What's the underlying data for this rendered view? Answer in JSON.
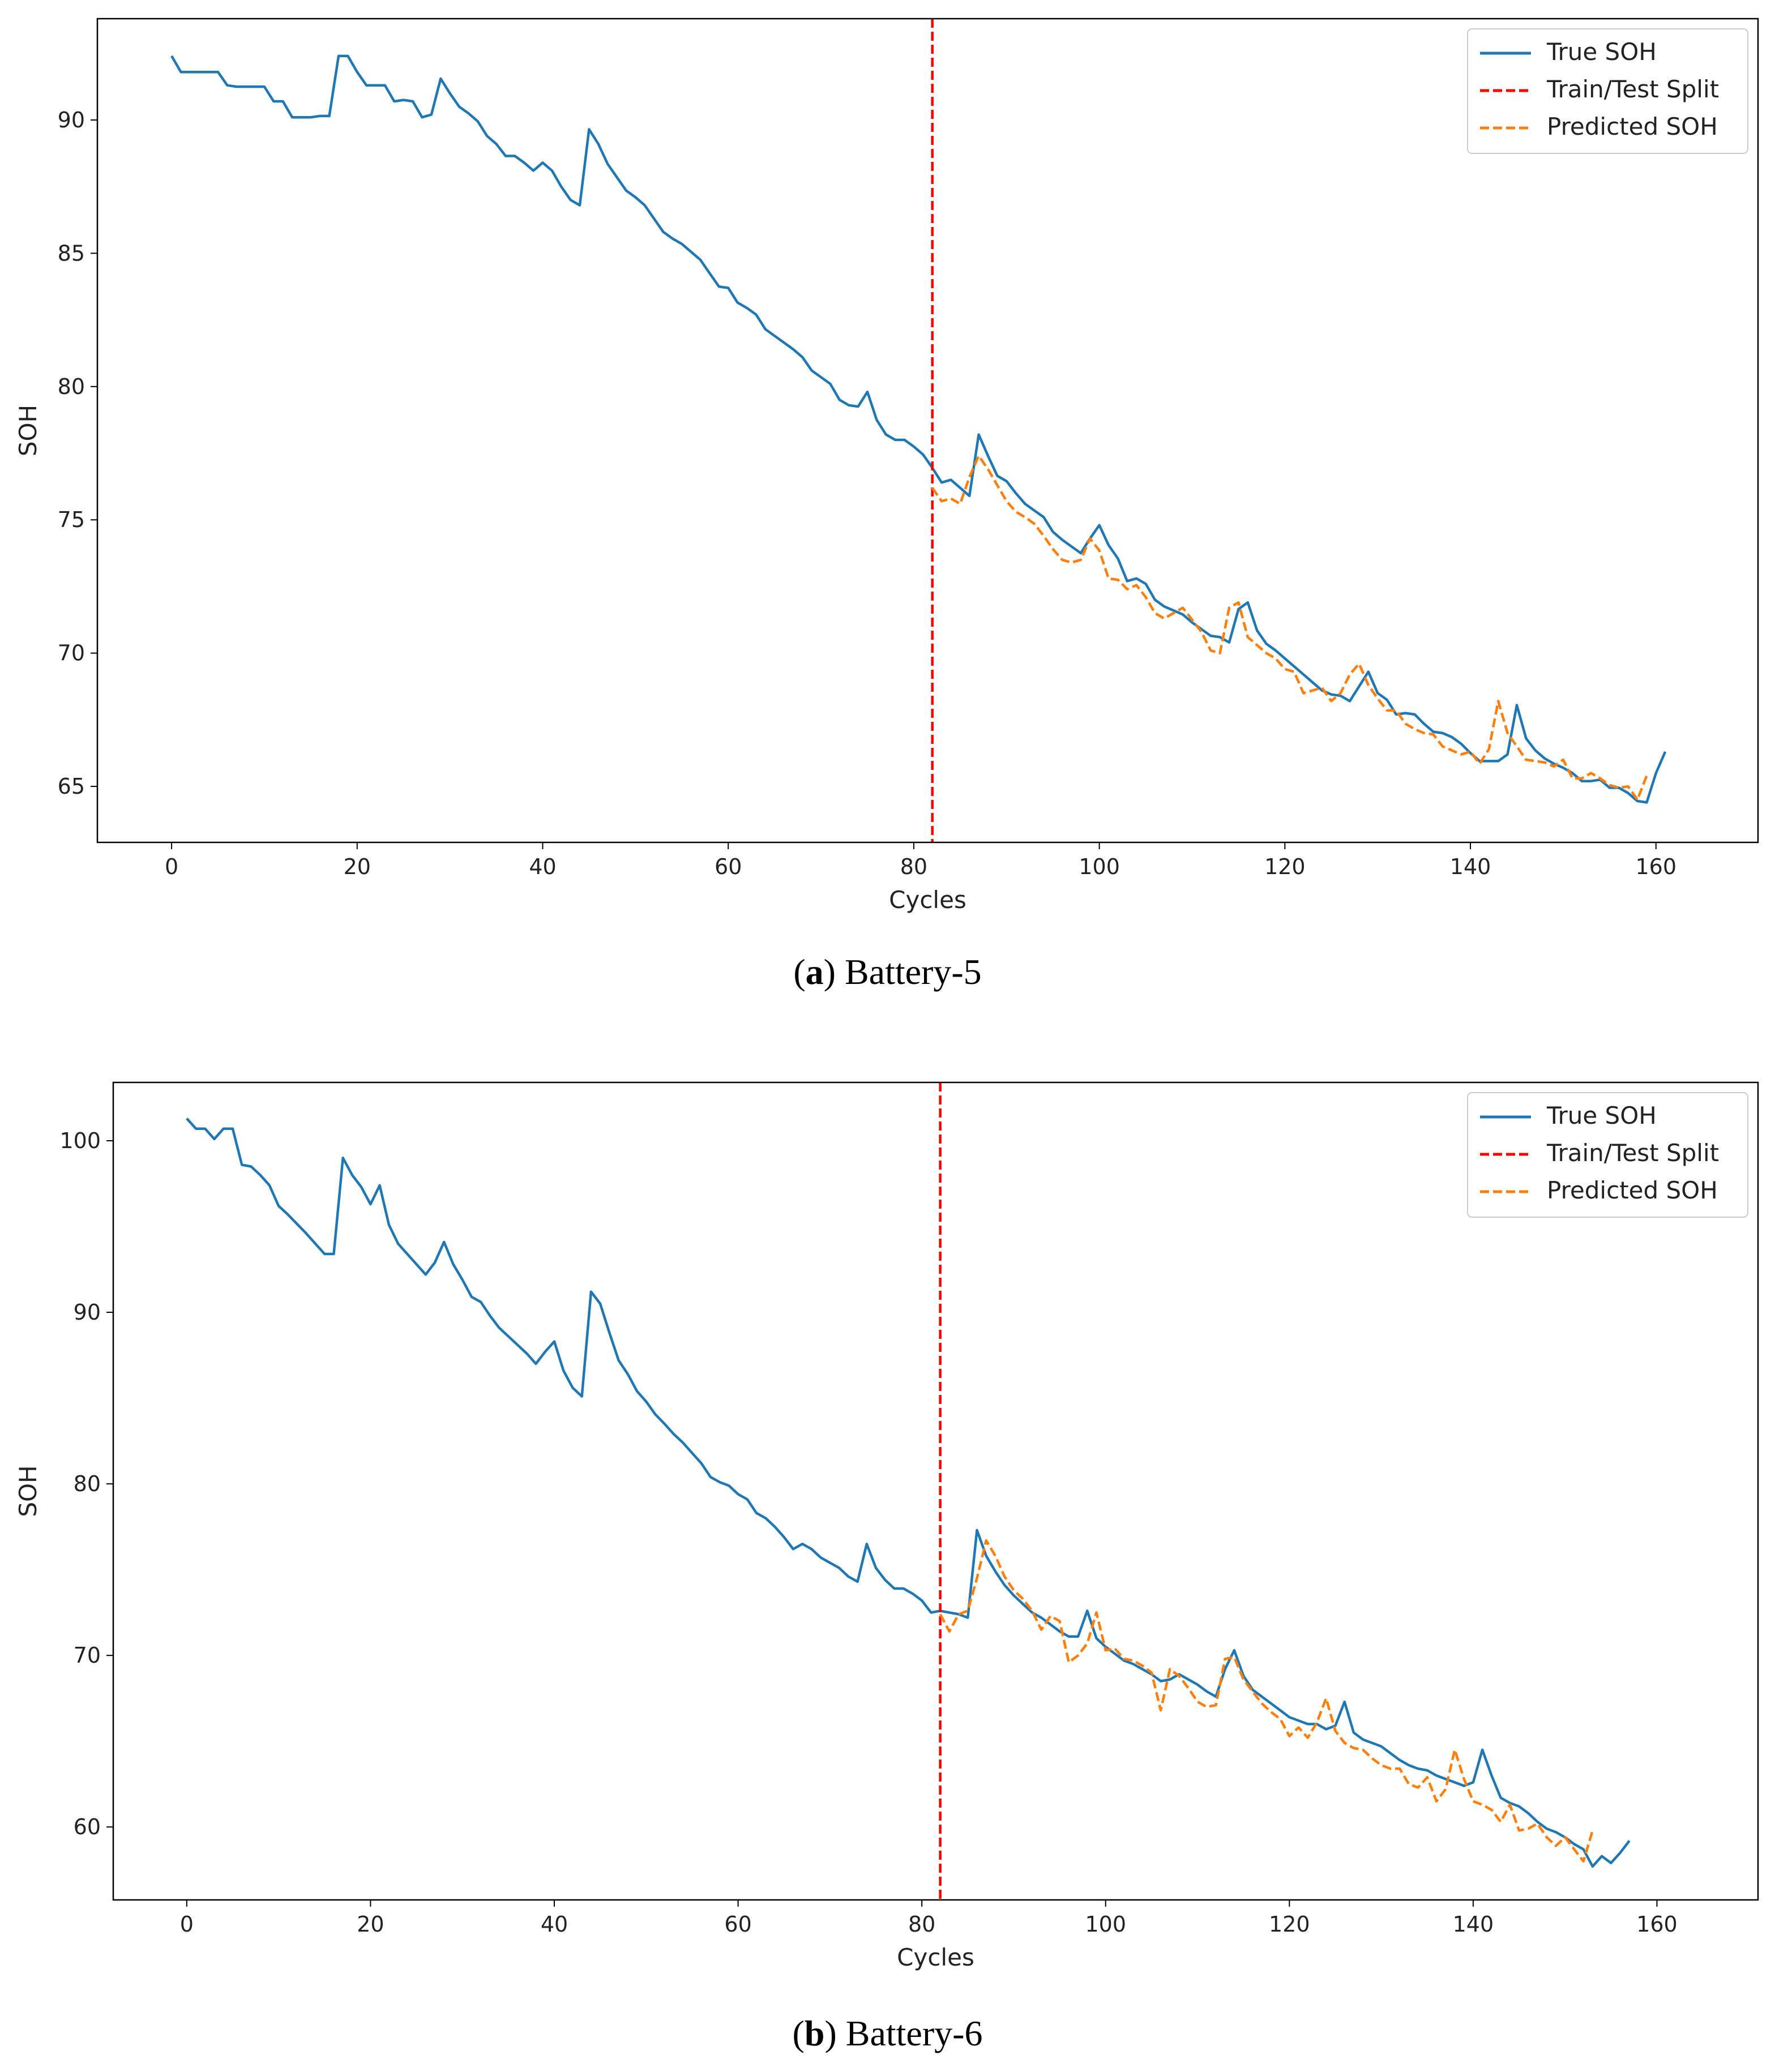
{
  "colors": {
    "true_soh": "#1f77b4",
    "split": "#ff0000",
    "predicted": "#ff7f0e"
  },
  "chart_data": [
    {
      "type": "line",
      "caption": {
        "letter": "a",
        "text": " Battery-5"
      },
      "xlabel": "Cycles",
      "ylabel": "SOH",
      "xlim": [
        -8,
        171
      ],
      "ylim": [
        62.9,
        93.8
      ],
      "xticks": [
        0,
        20,
        40,
        60,
        80,
        100,
        120,
        140,
        160
      ],
      "yticks": [
        65,
        70,
        75,
        80,
        85,
        90
      ],
      "split_x": 82,
      "legend": [
        "True SOH",
        "Train/Test Split",
        "Predicted SOH"
      ],
      "legend_position": "top-right",
      "series": [
        {
          "name": "True SOH",
          "x_start": 0,
          "values": [
            92.4,
            91.8,
            91.8,
            91.8,
            91.8,
            91.8,
            91.3,
            91.25,
            91.25,
            91.25,
            91.25,
            90.7,
            90.7,
            90.1,
            90.1,
            90.1,
            90.15,
            90.15,
            92.4,
            92.4,
            91.8,
            91.3,
            91.3,
            91.3,
            90.7,
            90.75,
            90.7,
            90.1,
            90.2,
            91.55,
            91.0,
            90.5,
            90.25,
            89.95,
            89.4,
            89.1,
            88.65,
            88.65,
            88.4,
            88.1,
            88.4,
            88.1,
            87.5,
            87.0,
            86.8,
            89.65,
            89.1,
            88.35,
            87.85,
            87.35,
            87.1,
            86.8,
            86.3,
            85.8,
            85.55,
            85.35,
            85.05,
            84.75,
            84.25,
            83.75,
            83.7,
            83.15,
            82.95,
            82.7,
            82.15,
            81.9,
            81.65,
            81.4,
            81.1,
            80.6,
            80.35,
            80.1,
            79.5,
            79.3,
            79.25,
            79.8,
            78.75,
            78.2,
            78.0,
            78.0,
            77.75,
            77.45,
            76.95,
            76.4,
            76.5,
            76.2,
            75.9,
            78.2,
            77.4,
            76.65,
            76.45,
            76.0,
            75.6,
            75.35,
            75.1,
            74.55,
            74.25,
            74.0,
            73.75,
            74.3,
            74.8,
            74.05,
            73.55,
            72.7,
            72.8,
            72.6,
            72.0,
            71.75,
            71.6,
            71.45,
            71.15,
            70.9,
            70.65,
            70.6,
            70.4,
            71.65,
            71.9,
            70.85,
            70.35,
            70.1,
            69.8,
            69.5,
            69.2,
            68.9,
            68.6,
            68.45,
            68.4,
            68.2,
            68.75,
            69.3,
            68.5,
            68.25,
            67.7,
            67.75,
            67.7,
            67.35,
            67.05,
            67.0,
            66.85,
            66.6,
            66.25,
            65.95,
            65.95,
            65.95,
            66.2,
            68.05,
            66.8,
            66.35,
            66.05,
            65.85,
            65.7,
            65.5,
            65.2,
            65.2,
            65.25,
            64.95,
            64.95,
            64.75,
            64.45,
            64.4,
            65.5,
            66.3
          ]
        },
        {
          "name": "Predicted SOH",
          "x_start": 82,
          "values": [
            76.2,
            75.7,
            75.8,
            75.6,
            76.6,
            77.4,
            76.9,
            76.3,
            75.7,
            75.3,
            75.1,
            74.85,
            74.4,
            73.9,
            73.5,
            73.4,
            73.5,
            74.3,
            73.85,
            72.8,
            72.75,
            72.4,
            72.55,
            72.1,
            71.5,
            71.3,
            71.5,
            71.7,
            71.25,
            70.8,
            70.1,
            70.0,
            71.7,
            71.9,
            70.6,
            70.3,
            70.0,
            69.8,
            69.4,
            69.3,
            68.5,
            68.6,
            68.7,
            68.2,
            68.5,
            69.2,
            69.6,
            68.8,
            68.3,
            67.85,
            67.85,
            67.35,
            67.15,
            67.0,
            66.95,
            66.5,
            66.35,
            66.2,
            66.3,
            65.85,
            66.4,
            68.2,
            67.0,
            66.5,
            66.0,
            65.95,
            65.9,
            65.75,
            66.0,
            65.3,
            65.3,
            65.5,
            65.3,
            65.05,
            64.95,
            65.0,
            64.5,
            65.4
          ]
        }
      ]
    },
    {
      "type": "line",
      "caption": {
        "letter": "b",
        "text": " Battery-6"
      },
      "xlabel": "Cycles",
      "ylabel": "SOH",
      "xlim": [
        -8,
        171
      ],
      "ylim": [
        55.75,
        103.4
      ],
      "xticks": [
        0,
        20,
        40,
        60,
        80,
        100,
        120,
        140,
        160
      ],
      "yticks": [
        60,
        70,
        80,
        90,
        100
      ],
      "split_x": 82,
      "legend": [
        "True SOH",
        "Train/Test Split",
        "Predicted SOH"
      ],
      "legend_position": "top-right",
      "series": [
        {
          "name": "True SOH",
          "x_start": 0,
          "values": [
            101.3,
            100.7,
            100.7,
            100.1,
            100.7,
            100.7,
            98.6,
            98.5,
            98.0,
            97.4,
            96.2,
            95.7,
            95.15,
            94.6,
            94.0,
            93.4,
            93.4,
            99.0,
            98.0,
            97.3,
            96.3,
            97.4,
            95.1,
            94.0,
            93.4,
            92.8,
            92.2,
            92.9,
            94.1,
            92.8,
            91.9,
            90.9,
            90.6,
            89.8,
            89.1,
            88.6,
            88.1,
            87.6,
            87.0,
            87.7,
            88.3,
            86.6,
            85.6,
            85.1,
            91.2,
            90.5,
            88.8,
            87.2,
            86.4,
            85.4,
            84.8,
            84.05,
            83.5,
            82.9,
            82.4,
            81.8,
            81.2,
            80.4,
            80.1,
            79.9,
            79.4,
            79.1,
            78.3,
            78.0,
            77.5,
            76.9,
            76.2,
            76.5,
            76.2,
            75.7,
            75.4,
            75.1,
            74.6,
            74.3,
            76.5,
            75.1,
            74.4,
            73.9,
            73.9,
            73.6,
            73.2,
            72.5,
            72.6,
            72.5,
            72.4,
            72.2,
            77.3,
            75.8,
            74.9,
            74.1,
            73.5,
            73.0,
            72.5,
            72.2,
            71.8,
            71.4,
            71.1,
            71.1,
            72.6,
            71.0,
            70.5,
            70.1,
            69.7,
            69.5,
            69.2,
            68.9,
            68.5,
            68.6,
            68.9,
            68.6,
            68.3,
            67.9,
            67.6,
            69.2,
            70.3,
            68.8,
            68.0,
            67.6,
            67.2,
            66.8,
            66.4,
            66.2,
            66.0,
            66.0,
            65.7,
            65.9,
            67.3,
            65.5,
            65.1,
            64.9,
            64.7,
            64.3,
            63.9,
            63.6,
            63.4,
            63.3,
            63.0,
            62.8,
            62.6,
            62.4,
            62.6,
            64.5,
            63.0,
            61.7,
            61.4,
            61.2,
            60.8,
            60.3,
            59.9,
            59.7,
            59.4,
            59.0,
            58.7,
            57.7,
            58.3,
            57.9,
            58.5,
            59.2
          ]
        },
        {
          "name": "Predicted SOH",
          "x_start": 82,
          "values": [
            72.4,
            71.4,
            72.4,
            72.6,
            74.5,
            76.7,
            75.8,
            74.6,
            73.8,
            73.3,
            72.6,
            71.5,
            72.3,
            72.0,
            69.6,
            70.0,
            70.7,
            72.5,
            70.3,
            70.4,
            69.8,
            69.7,
            69.4,
            69.0,
            66.8,
            69.2,
            68.8,
            68.1,
            67.3,
            67.0,
            67.1,
            69.8,
            69.9,
            68.6,
            67.9,
            67.2,
            66.7,
            66.3,
            65.3,
            65.8,
            65.2,
            66.1,
            67.5,
            65.6,
            64.9,
            64.6,
            64.5,
            64.0,
            63.6,
            63.4,
            63.4,
            62.5,
            62.3,
            62.9,
            61.5,
            62.2,
            64.5,
            62.8,
            61.5,
            61.3,
            61.0,
            60.3,
            61.3,
            59.8,
            59.9,
            60.2,
            59.4,
            58.9,
            59.4,
            58.7,
            58.0,
            59.8
          ]
        }
      ]
    }
  ]
}
